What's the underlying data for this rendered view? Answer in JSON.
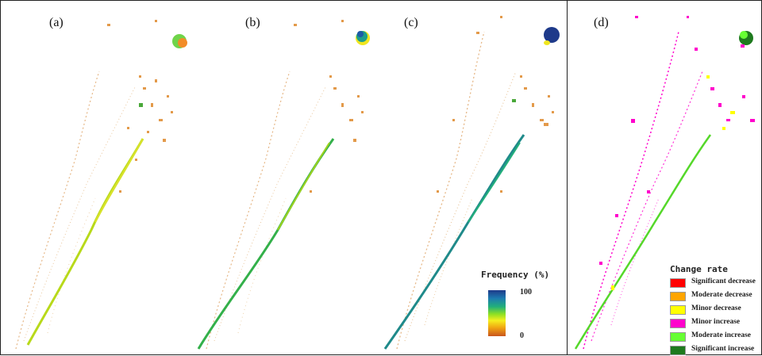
{
  "panels": [
    {
      "label": "(a)",
      "id": "a"
    },
    {
      "label": "(b)",
      "id": "b"
    },
    {
      "label": "(c)",
      "id": "c"
    },
    {
      "label": "(d)",
      "id": "d"
    }
  ],
  "frequency_legend": {
    "title": "Frequency (%)",
    "max_label": "100",
    "min_label": "0",
    "colors": [
      "#1e3a8a",
      "#1d7bb0",
      "#22b07a",
      "#8ee023",
      "#f5ef1f",
      "#f0a312",
      "#c8551c"
    ]
  },
  "change_legend": {
    "title": "Change rate",
    "items": [
      {
        "label": "Significant decrease",
        "color": "#ff0000"
      },
      {
        "label": "Moderate decrease",
        "color": "#ffa500"
      },
      {
        "label": "Minor decrease",
        "color": "#ffff00"
      },
      {
        "label": "Minor increase",
        "color": "#ff00cc"
      },
      {
        "label": "Moderate increase",
        "color": "#66ff33"
      },
      {
        "label": "Significant increase",
        "color": "#1e7a1e"
      }
    ]
  }
}
